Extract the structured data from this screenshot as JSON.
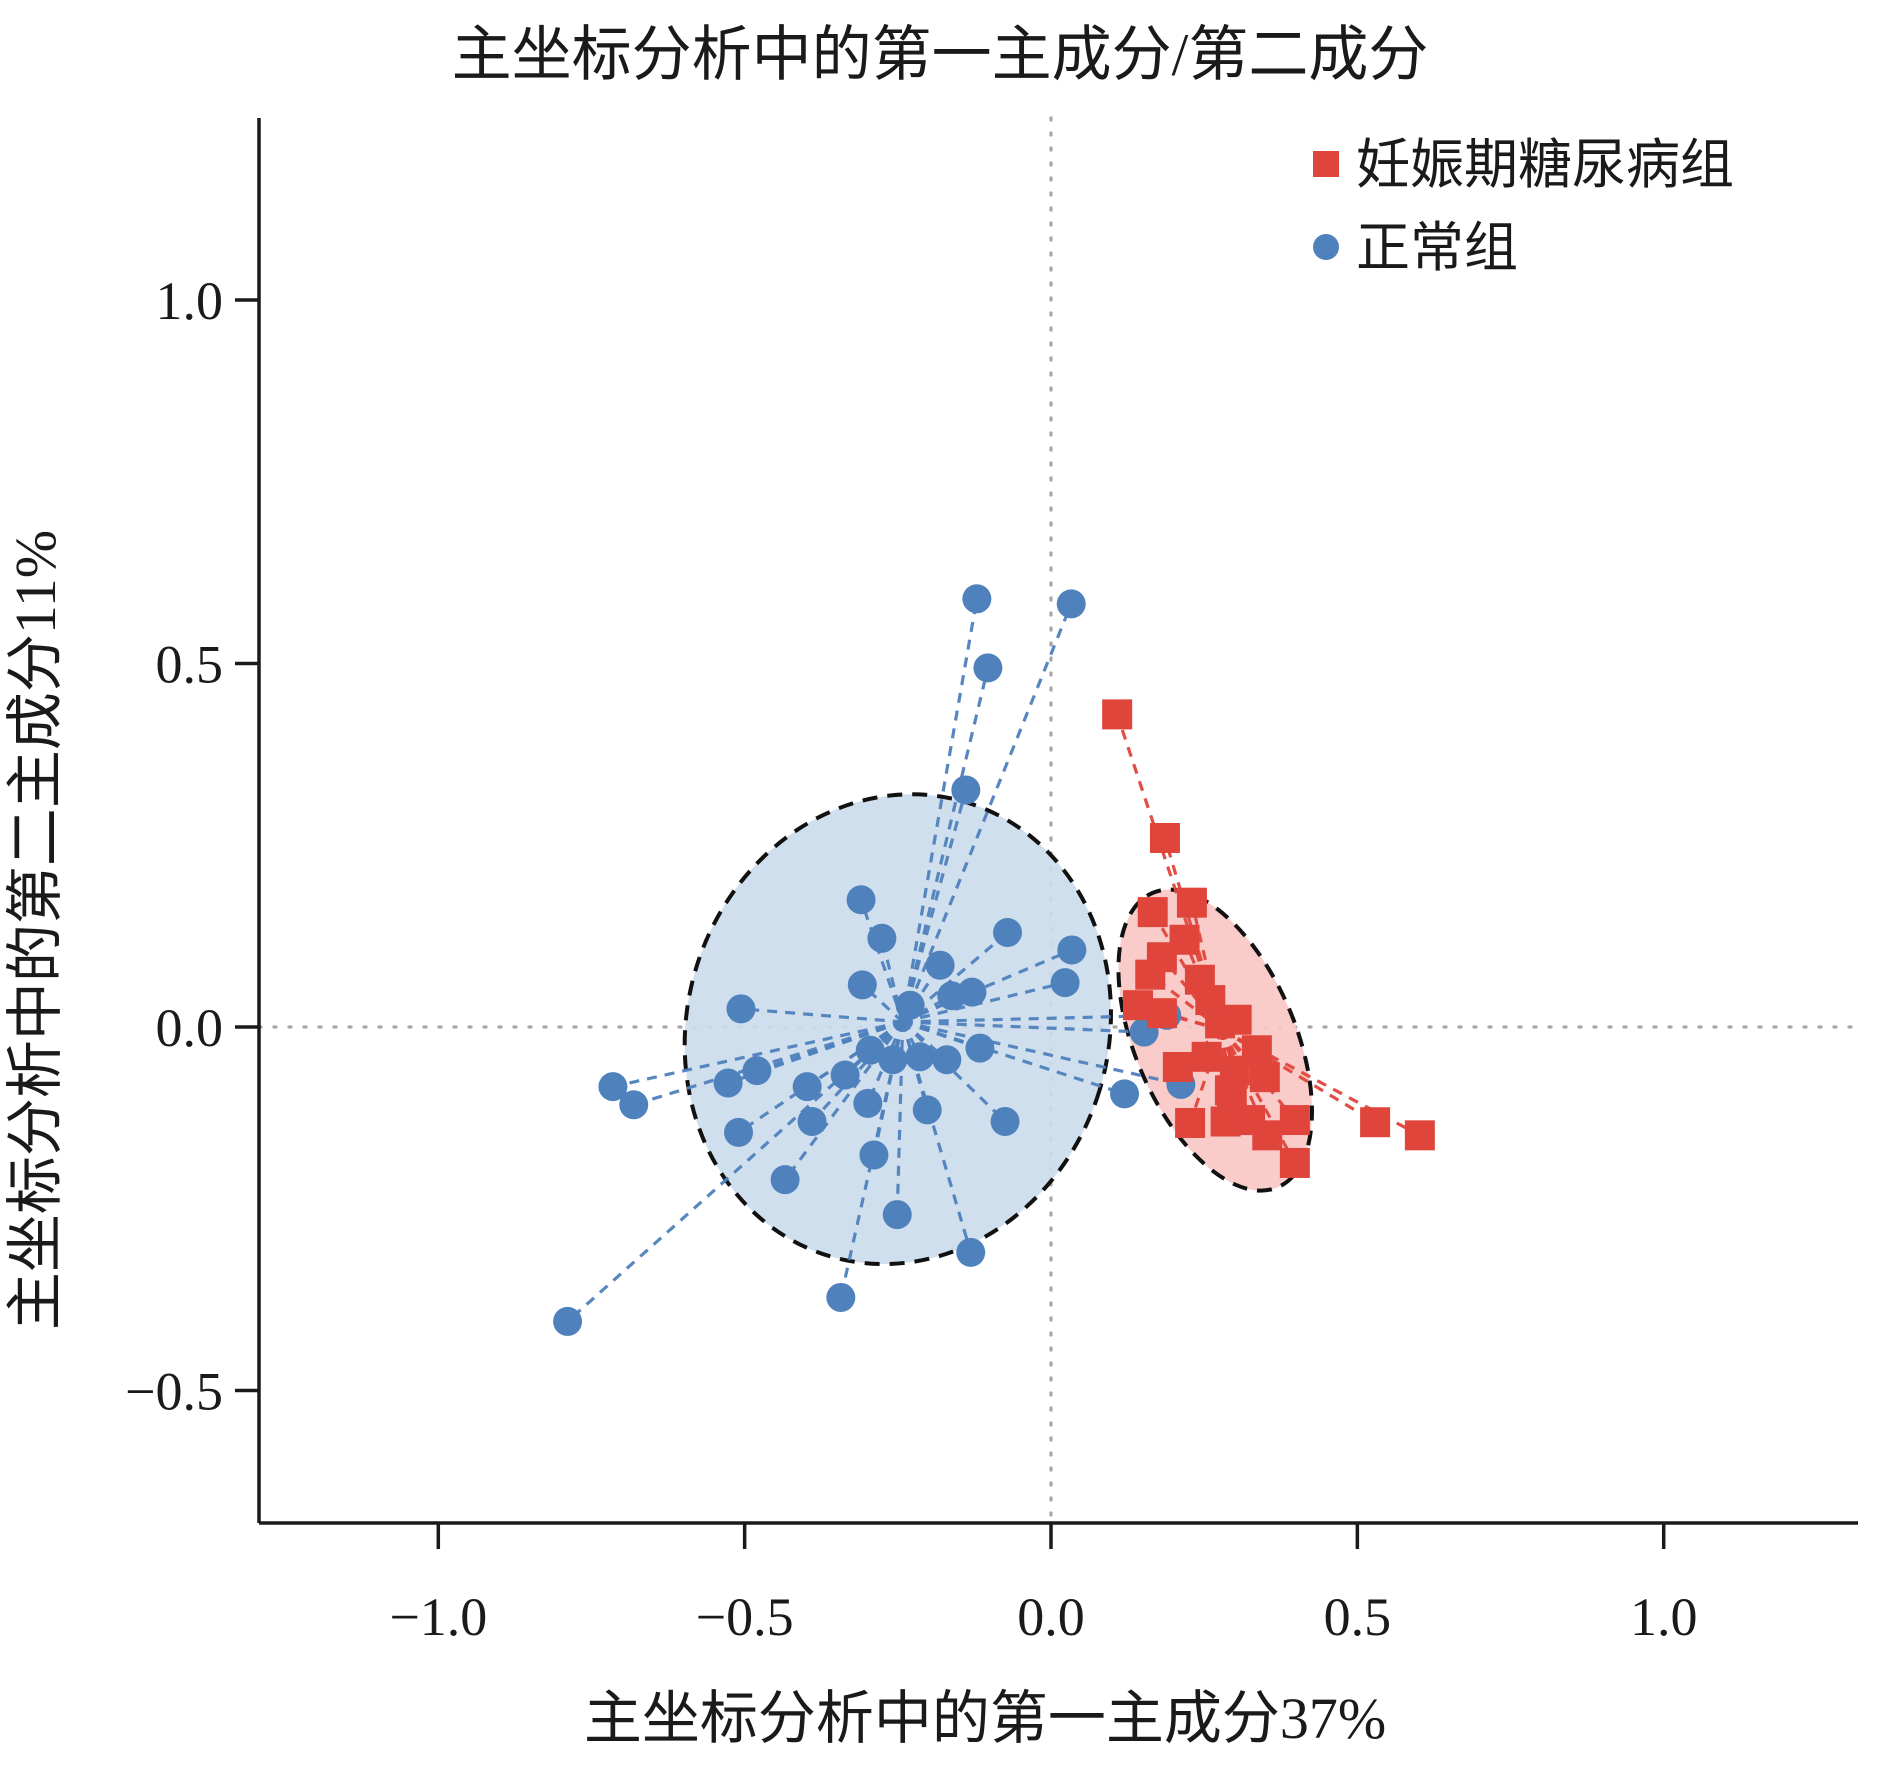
{
  "title": "主坐标分析中的第一主成分/第二成分",
  "legend": {
    "items": [
      {
        "label": "妊娠期糖尿病组",
        "marker": "square",
        "color": "#e0453c"
      },
      {
        "label": "正常组",
        "marker": "circle",
        "color": "#4f81bd"
      }
    ]
  },
  "colors": {
    "gdm_red": "#e0453c",
    "gdm_ellipse_fill": "#f9c8c4",
    "normal_blue": "#4f81bd",
    "normal_ellipse_fill": "#ccdcec",
    "ellipse_outline": "#111111",
    "reference_dotted": "#a6a6a6",
    "axis": "#1a1a1a"
  },
  "chart_data": {
    "type": "scatter",
    "title": "主坐标分析中的第一主成分/第二成分",
    "xlabel": "主坐标分析中的第一主成分37%",
    "ylabel": "主坐标分析中的第二主成分11%",
    "xlim": [
      -1.29,
      1.32
    ],
    "ylim": [
      -0.68,
      1.25
    ],
    "x_ticks": {
      "values": [
        -1.0,
        -0.5,
        0.0,
        0.5,
        1.0
      ],
      "labels": [
        "−1.0",
        "−0.5",
        "0.0",
        "0.5",
        "1.0"
      ]
    },
    "y_ticks": {
      "values": [
        1.0,
        0.5,
        0.0,
        -0.5
      ],
      "labels": [
        "1.0",
        "0.5",
        "0.0",
        "−0.5"
      ]
    },
    "reference_lines": {
      "vertical_x": 0.0,
      "horizontal_y": 0.0
    },
    "grid": false,
    "legend_position": "top-right",
    "spider_lines": true,
    "series": [
      {
        "name": "正常组",
        "marker": "circle",
        "color": "#4f81bd",
        "ellipse_fill": "#ccdcec",
        "centroid": [
          -0.242,
          0.007
        ],
        "ellipse": {
          "cx": -0.25,
          "cy": -0.003,
          "rx": 0.344,
          "ry": 0.326,
          "rotation_deg": 17
        },
        "points": [
          [
            -0.121,
            0.589
          ],
          [
            0.033,
            0.582
          ],
          [
            -0.103,
            0.494
          ],
          [
            -0.139,
            0.326
          ],
          [
            -0.31,
            0.175
          ],
          [
            -0.276,
            0.122
          ],
          [
            -0.071,
            0.13
          ],
          [
            -0.162,
            0.043
          ],
          [
            -0.506,
            0.025
          ],
          [
            -0.308,
            0.058
          ],
          [
            -0.181,
            0.085
          ],
          [
            -0.129,
            0.048
          ],
          [
            -0.23,
            0.03
          ],
          [
            0.023,
            0.061
          ],
          [
            0.034,
            0.106
          ],
          [
            -0.116,
            -0.029
          ],
          [
            -0.295,
            -0.032
          ],
          [
            -0.258,
            -0.045
          ],
          [
            -0.214,
            -0.041
          ],
          [
            -0.17,
            -0.045
          ],
          [
            -0.299,
            -0.105
          ],
          [
            -0.202,
            -0.114
          ],
          [
            -0.075,
            -0.13
          ],
          [
            -0.715,
            -0.082
          ],
          [
            -0.681,
            -0.107
          ],
          [
            -0.527,
            -0.077
          ],
          [
            -0.51,
            -0.145
          ],
          [
            -0.398,
            -0.082
          ],
          [
            -0.434,
            -0.21
          ],
          [
            -0.336,
            -0.066
          ],
          [
            -0.48,
            -0.06
          ],
          [
            -0.39,
            -0.13
          ],
          [
            -0.289,
            -0.176
          ],
          [
            -0.251,
            -0.258
          ],
          [
            -0.131,
            -0.31
          ],
          [
            -0.343,
            -0.372
          ],
          [
            -0.789,
            -0.405
          ],
          [
            0.12,
            -0.092
          ],
          [
            0.152,
            -0.007
          ],
          [
            0.189,
            0.016
          ],
          [
            0.212,
            -0.079
          ]
        ]
      },
      {
        "name": "妊娠期糖尿病组",
        "marker": "square",
        "color": "#e0453c",
        "ellipse_fill": "#f9c8c4",
        "centroid": [
          0.279,
          -0.004
        ],
        "ellipse": {
          "cx": 0.268,
          "cy": -0.018,
          "rx": 0.131,
          "ry": 0.22,
          "rotation_deg": -23
        },
        "points": [
          [
            0.108,
            0.43
          ],
          [
            0.186,
            0.26
          ],
          [
            0.166,
            0.158
          ],
          [
            0.23,
            0.171
          ],
          [
            0.181,
            0.096
          ],
          [
            0.162,
            0.072
          ],
          [
            0.243,
            0.065
          ],
          [
            0.142,
            0.03
          ],
          [
            0.181,
            0.019
          ],
          [
            0.276,
            0.005
          ],
          [
            0.303,
            0.01
          ],
          [
            0.26,
            0.037
          ],
          [
            0.218,
            0.12
          ],
          [
            0.207,
            -0.055
          ],
          [
            0.254,
            -0.041
          ],
          [
            0.336,
            -0.032
          ],
          [
            0.292,
            -0.087
          ],
          [
            0.349,
            -0.069
          ],
          [
            0.3,
            -0.06
          ],
          [
            0.227,
            -0.132
          ],
          [
            0.325,
            -0.128
          ],
          [
            0.398,
            -0.128
          ],
          [
            0.353,
            -0.149
          ],
          [
            0.295,
            -0.103
          ],
          [
            0.285,
            -0.13
          ],
          [
            0.398,
            -0.187
          ],
          [
            0.529,
            -0.131
          ],
          [
            0.602,
            -0.149
          ]
        ]
      }
    ]
  }
}
